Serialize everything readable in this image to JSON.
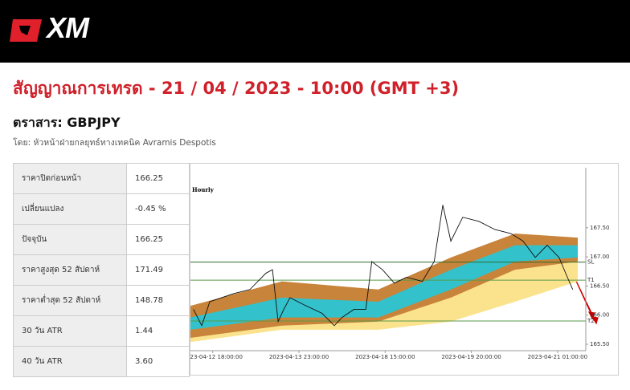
{
  "header": {
    "logo": "XM"
  },
  "title": "สัญญาณการเทรด - 21 / 04 / 2023 - 10:00 (GMT +3)",
  "instrument": "ตราสาร: GBPJPY",
  "author": "โดย: หัวหน้าฝ่ายกลยุทธ์ทางเทคนิค Avramis Despotis",
  "table": {
    "rows": [
      [
        "ราคาปิดก่อนหน้า",
        "166.25"
      ],
      [
        "เปลี่ยนแปลง",
        "-0.45 %"
      ],
      [
        "ปัจจุบัน",
        "166.25"
      ],
      [
        "ราคาสูงสุด 52 สัปดาห์",
        "171.49"
      ],
      [
        "ราคาต่ำสุด 52 สัปดาห์",
        "148.78"
      ],
      [
        "30 วัน ATR",
        "1.44"
      ],
      [
        "40 วัน ATR",
        "3.60"
      ]
    ]
  },
  "chart_data": {
    "type": "line",
    "subtitle": "Hourly",
    "xlim": [
      0,
      133
    ],
    "ylim": [
      165.39,
      168.53
    ],
    "xticks": [
      {
        "value": 7.5,
        "label": "2023-04-12 18:00:00"
      },
      {
        "value": 36.5,
        "label": "2023-04-13 23:00:00"
      },
      {
        "value": 65.5,
        "label": "2023-04-18 15:00:00"
      },
      {
        "value": 94.5,
        "label": "2023-04-19 20:00:00"
      },
      {
        "value": 123.5,
        "label": "2023-04-21 01:00:00"
      }
    ],
    "yticks": [
      {
        "value": 167.5,
        "label": "167.50"
      },
      {
        "value": 167,
        "label": "167.00"
      },
      {
        "value": 166.5,
        "label": "166.50"
      },
      {
        "value": 166,
        "label": "166.00"
      },
      {
        "value": 165.5,
        "label": "165.50"
      }
    ],
    "series": [
      {
        "color": "#111111",
        "x": [
          1,
          3.8,
          6.5,
          10.5,
          14.6,
          20,
          25.4,
          27.6,
          29.5,
          31.4,
          33.5,
          38.9,
          44.3,
          48.4,
          51,
          55,
          59,
          61,
          64.6,
          68.6,
          72.7,
          78,
          82,
          84.9,
          87.6,
          91.6,
          97,
          102.4,
          107.8,
          111.9,
          116,
          120,
          124,
          126.8,
          128.6
        ],
        "values": [
          166.1,
          165.82,
          166.23,
          166.3,
          166.37,
          166.44,
          166.72,
          166.78,
          165.89,
          166.1,
          166.3,
          166.16,
          166.03,
          165.82,
          165.96,
          166.1,
          166.1,
          166.92,
          166.78,
          166.55,
          166.65,
          166.58,
          166.92,
          167.89,
          167.27,
          167.68,
          167.61,
          167.47,
          167.4,
          167.27,
          166.99,
          167.2,
          166.99,
          166.65,
          166.44
        ]
      }
    ],
    "bands": [
      {
        "color": "#fbe38e",
        "x": [
          0,
          30.8,
          63.2,
          87.6,
          109.2,
          130.3
        ],
        "upper": [
          166.03,
          166.23,
          166.23,
          166.37,
          166.78,
          167.27
        ],
        "lower": [
          165.54,
          165.75,
          165.75,
          165.89,
          166.23,
          166.58
        ]
      },
      {
        "color": "#c8843a",
        "x": [
          0,
          30.8,
          63.2,
          87.6,
          109.2,
          130.3
        ],
        "upper": [
          166.16,
          166.58,
          166.44,
          166.99,
          167.4,
          167.33
        ],
        "lower": [
          165.61,
          165.82,
          165.89,
          166.3,
          166.78,
          166.92
        ]
      },
      {
        "color": "#33c1cc",
        "x": [
          0,
          30.8,
          63.2,
          87.6,
          109.2,
          130.3
        ],
        "upper": [
          165.96,
          166.3,
          166.23,
          166.78,
          167.2,
          167.2
        ],
        "lower": [
          165.75,
          165.96,
          165.96,
          166.44,
          166.92,
          166.99
        ]
      }
    ],
    "levels": [
      {
        "label": "SL",
        "value": 166.91,
        "color": "#2f6b2f"
      },
      {
        "label": "T1",
        "value": 166.6,
        "color": "#5a9a4a"
      },
      {
        "label": "T2",
        "value": 165.9,
        "color": "#5a9a4a"
      }
    ]
  }
}
